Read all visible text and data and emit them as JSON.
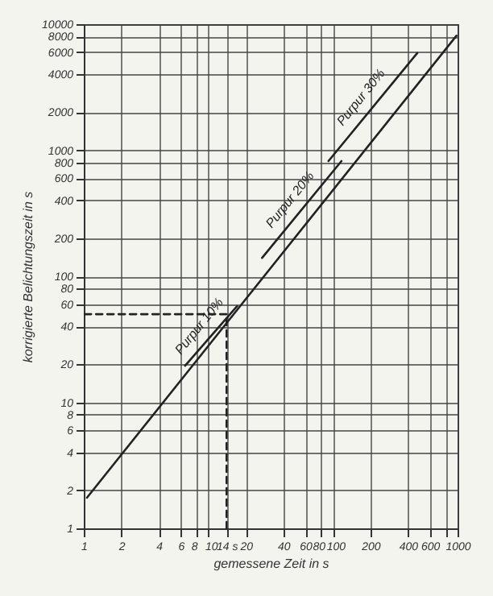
{
  "chart_data": {
    "type": "line",
    "xlabel": "gemessene Zeit in s",
    "ylabel": "korrigierte Belichtungszeit in s",
    "log": "xy",
    "grid": true,
    "xlim": [
      1,
      1000
    ],
    "ylim": [
      1,
      10000
    ],
    "xticks": [
      1,
      2,
      4,
      6,
      8,
      10,
      {
        "value": 14,
        "label": "14 s"
      },
      20,
      40,
      60,
      80,
      100,
      200,
      400,
      600,
      {
        "value": 800,
        "label": null
      },
      1000
    ],
    "yticks": [
      1,
      2,
      4,
      6,
      8,
      10,
      20,
      40,
      60,
      80,
      100,
      200,
      400,
      600,
      800,
      1000,
      2000,
      4000,
      6000,
      8000,
      10000
    ],
    "series": [
      {
        "color": "#222222",
        "x": [
          1.06,
          980
        ],
        "values": [
          1.75,
          8100
        ],
        "line_style": "solid"
      },
      {
        "name": "Purpur 10%",
        "color": "#222222",
        "x": [
          6.5,
          17
        ],
        "values": [
          19.5,
          58
        ],
        "line_style": "solid"
      },
      {
        "name": "Purpur 20%",
        "color": "#222222",
        "x": [
          27,
          117
        ],
        "values": [
          140,
          820
        ],
        "line_style": "solid"
      },
      {
        "name": "Purpur 30%",
        "color": "#222222",
        "x": [
          92,
          475
        ],
        "values": [
          820,
          5900
        ],
        "line_style": "solid"
      },
      {
        "color": "#222222",
        "x": [
          14,
          14,
          1
        ],
        "values": [
          1,
          50,
          50
        ],
        "line_style": "dashed"
      }
    ]
  }
}
